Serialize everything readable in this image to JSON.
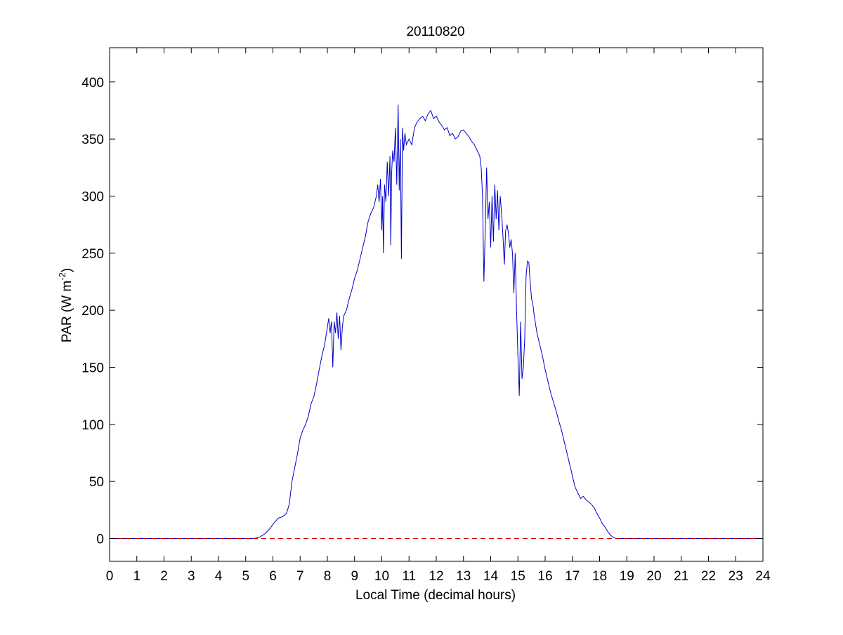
{
  "chart_data": {
    "type": "line",
    "title": "20110820",
    "xlabel": "Local Time (decimal hours)",
    "ylabel": {
      "prefix": "PAR (W m",
      "superscript": "-2",
      "suffix": ")"
    },
    "xlim": [
      0,
      24
    ],
    "ylim": [
      -20,
      430
    ],
    "grid": false,
    "x_ticks": [
      0,
      1,
      2,
      3,
      4,
      5,
      6,
      7,
      8,
      9,
      10,
      11,
      12,
      13,
      14,
      15,
      16,
      17,
      18,
      19,
      20,
      21,
      22,
      23,
      24
    ],
    "x_tick_labels": [
      "0",
      "1",
      "2",
      "3",
      "4",
      "5",
      "6",
      "7",
      "8",
      "9",
      "10",
      "11",
      "12",
      "13",
      "14",
      "15",
      "16",
      "17",
      "18",
      "19",
      "20",
      "21",
      "22",
      "23",
      "24"
    ],
    "y_ticks": [
      0,
      50,
      100,
      150,
      200,
      250,
      300,
      350,
      400
    ],
    "y_tick_labels": [
      "0",
      "50",
      "100",
      "150",
      "200",
      "250",
      "300",
      "350",
      "400"
    ],
    "series": [
      {
        "color": "#0000cc",
        "style": "solid",
        "points": [
          [
            0,
            0
          ],
          [
            5.0,
            0
          ],
          [
            5.3,
            0
          ],
          [
            5.5,
            1
          ],
          [
            5.7,
            4
          ],
          [
            5.9,
            9
          ],
          [
            6.05,
            14
          ],
          [
            6.2,
            18
          ],
          [
            6.35,
            19
          ],
          [
            6.5,
            22
          ],
          [
            6.6,
            30
          ],
          [
            6.7,
            50
          ],
          [
            6.8,
            62
          ],
          [
            6.9,
            74
          ],
          [
            7.0,
            88
          ],
          [
            7.1,
            95
          ],
          [
            7.2,
            100
          ],
          [
            7.3,
            107
          ],
          [
            7.4,
            118
          ],
          [
            7.5,
            124
          ],
          [
            7.6,
            135
          ],
          [
            7.7,
            148
          ],
          [
            7.8,
            160
          ],
          [
            7.9,
            170
          ],
          [
            8.0,
            185
          ],
          [
            8.05,
            193
          ],
          [
            8.1,
            180
          ],
          [
            8.15,
            190
          ],
          [
            8.2,
            150
          ],
          [
            8.25,
            190
          ],
          [
            8.3,
            180
          ],
          [
            8.35,
            198
          ],
          [
            8.4,
            175
          ],
          [
            8.45,
            195
          ],
          [
            8.5,
            165
          ],
          [
            8.55,
            185
          ],
          [
            8.6,
            195
          ],
          [
            8.7,
            200
          ],
          [
            8.8,
            210
          ],
          [
            8.9,
            218
          ],
          [
            9.0,
            228
          ],
          [
            9.1,
            235
          ],
          [
            9.2,
            245
          ],
          [
            9.3,
            255
          ],
          [
            9.4,
            265
          ],
          [
            9.5,
            278
          ],
          [
            9.6,
            285
          ],
          [
            9.7,
            290
          ],
          [
            9.8,
            300
          ],
          [
            9.85,
            310
          ],
          [
            9.9,
            295
          ],
          [
            9.95,
            315
          ],
          [
            10.0,
            270
          ],
          [
            10.03,
            300
          ],
          [
            10.06,
            250
          ],
          [
            10.1,
            310
          ],
          [
            10.15,
            295
          ],
          [
            10.2,
            330
          ],
          [
            10.25,
            300
          ],
          [
            10.3,
            335
          ],
          [
            10.33,
            257
          ],
          [
            10.36,
            320
          ],
          [
            10.4,
            340
          ],
          [
            10.45,
            330
          ],
          [
            10.5,
            360
          ],
          [
            10.55,
            310
          ],
          [
            10.6,
            380
          ],
          [
            10.64,
            305
          ],
          [
            10.68,
            350
          ],
          [
            10.72,
            245
          ],
          [
            10.76,
            360
          ],
          [
            10.8,
            340
          ],
          [
            10.85,
            355
          ],
          [
            10.9,
            345
          ],
          [
            11.0,
            350
          ],
          [
            11.1,
            345
          ],
          [
            11.2,
            360
          ],
          [
            11.3,
            365
          ],
          [
            11.4,
            368
          ],
          [
            11.5,
            370
          ],
          [
            11.6,
            366
          ],
          [
            11.7,
            372
          ],
          [
            11.8,
            375
          ],
          [
            11.9,
            368
          ],
          [
            12.0,
            370
          ],
          [
            12.1,
            365
          ],
          [
            12.2,
            362
          ],
          [
            12.3,
            358
          ],
          [
            12.4,
            360
          ],
          [
            12.5,
            353
          ],
          [
            12.6,
            355
          ],
          [
            12.7,
            350
          ],
          [
            12.8,
            352
          ],
          [
            12.9,
            357
          ],
          [
            13.0,
            358
          ],
          [
            13.1,
            355
          ],
          [
            13.2,
            352
          ],
          [
            13.3,
            348
          ],
          [
            13.4,
            345
          ],
          [
            13.5,
            340
          ],
          [
            13.6,
            335
          ],
          [
            13.65,
            325
          ],
          [
            13.7,
            300
          ],
          [
            13.75,
            225
          ],
          [
            13.8,
            270
          ],
          [
            13.85,
            325
          ],
          [
            13.9,
            280
          ],
          [
            13.95,
            295
          ],
          [
            14.0,
            255
          ],
          [
            14.05,
            300
          ],
          [
            14.1,
            260
          ],
          [
            14.15,
            310
          ],
          [
            14.2,
            280
          ],
          [
            14.25,
            305
          ],
          [
            14.3,
            270
          ],
          [
            14.35,
            300
          ],
          [
            14.4,
            285
          ],
          [
            14.45,
            265
          ],
          [
            14.5,
            240
          ],
          [
            14.55,
            270
          ],
          [
            14.6,
            275
          ],
          [
            14.65,
            268
          ],
          [
            14.7,
            255
          ],
          [
            14.75,
            262
          ],
          [
            14.8,
            250
          ],
          [
            14.85,
            215
          ],
          [
            14.9,
            250
          ],
          [
            14.95,
            200
          ],
          [
            15.0,
            160
          ],
          [
            15.05,
            125
          ],
          [
            15.1,
            190
          ],
          [
            15.15,
            140
          ],
          [
            15.2,
            150
          ],
          [
            15.25,
            175
          ],
          [
            15.3,
            230
          ],
          [
            15.35,
            243
          ],
          [
            15.4,
            242
          ],
          [
            15.45,
            225
          ],
          [
            15.5,
            210
          ],
          [
            15.55,
            205
          ],
          [
            15.6,
            195
          ],
          [
            15.7,
            180
          ],
          [
            15.8,
            170
          ],
          [
            15.9,
            160
          ],
          [
            16.0,
            148
          ],
          [
            16.1,
            138
          ],
          [
            16.2,
            128
          ],
          [
            16.3,
            120
          ],
          [
            16.4,
            112
          ],
          [
            16.5,
            103
          ],
          [
            16.6,
            95
          ],
          [
            16.7,
            85
          ],
          [
            16.8,
            75
          ],
          [
            16.9,
            65
          ],
          [
            17.0,
            55
          ],
          [
            17.1,
            45
          ],
          [
            17.2,
            40
          ],
          [
            17.3,
            35
          ],
          [
            17.4,
            37
          ],
          [
            17.5,
            34
          ],
          [
            17.6,
            32
          ],
          [
            17.7,
            30
          ],
          [
            17.8,
            27
          ],
          [
            17.9,
            22
          ],
          [
            18.0,
            18
          ],
          [
            18.1,
            13
          ],
          [
            18.2,
            10
          ],
          [
            18.3,
            6
          ],
          [
            18.4,
            3
          ],
          [
            18.5,
            1
          ],
          [
            18.6,
            0
          ],
          [
            24,
            0
          ]
        ]
      },
      {
        "color": "#cc0000",
        "style": "dashed",
        "points": [
          [
            0,
            0
          ],
          [
            24,
            0
          ]
        ]
      }
    ]
  }
}
